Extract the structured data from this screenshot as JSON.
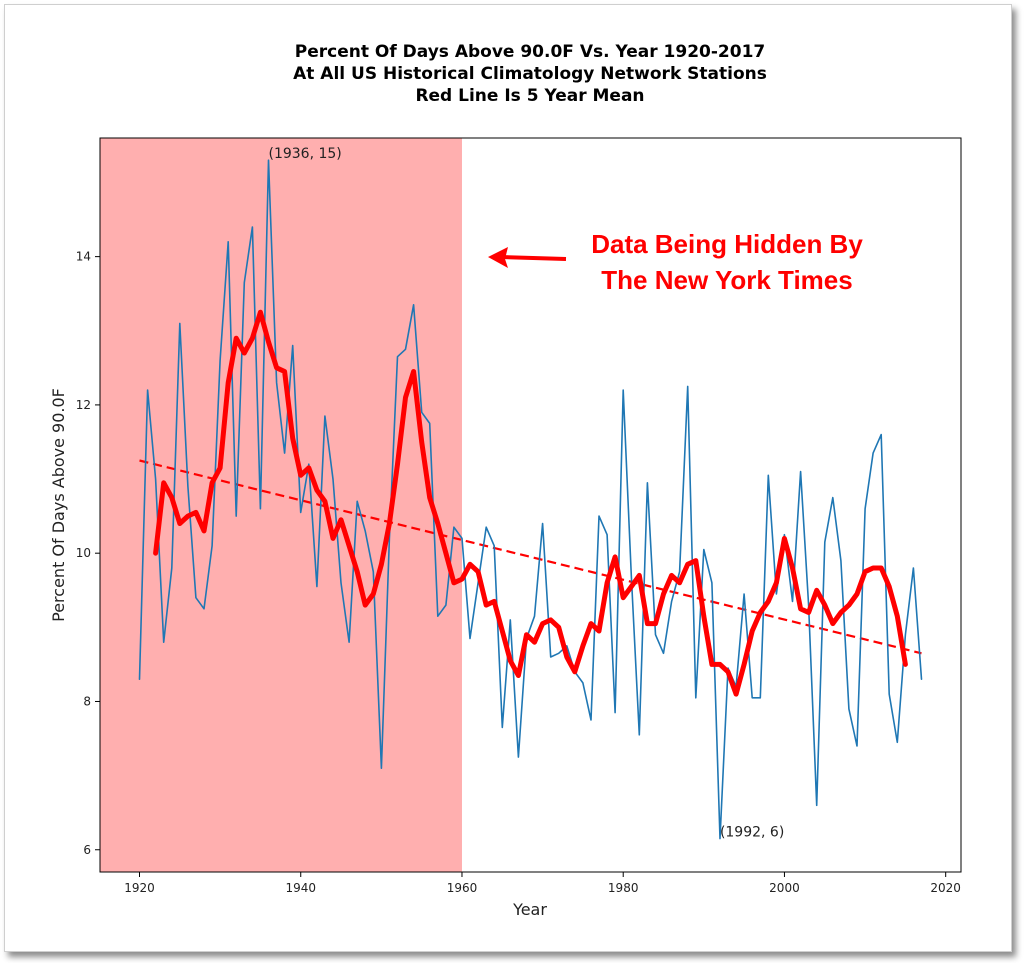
{
  "chart_data": {
    "type": "line",
    "title": [
      "Percent Of Days Above 90.0F Vs. Year 1920-2017",
      "At All US Historical Climatology Network Stations",
      "Red Line Is 5 Year Mean"
    ],
    "xlabel": "Year",
    "ylabel": "Percent Of Days Above 90.0F",
    "xlim": [
      1915.1,
      2021.9
    ],
    "ylim": [
      5.7,
      15.6
    ],
    "xticks": [
      1920,
      1940,
      1960,
      1980,
      2000,
      2020
    ],
    "yticks": [
      6,
      8,
      10,
      12,
      14
    ],
    "shaded_region": {
      "x": [
        1915.1,
        1960
      ],
      "color": "#ffafaf"
    },
    "series": [
      {
        "role": "annual",
        "color": "#1f77b4",
        "x": [
          1920,
          1921,
          1922,
          1923,
          1924,
          1925,
          1926,
          1927,
          1928,
          1929,
          1930,
          1931,
          1932,
          1933,
          1934,
          1935,
          1936,
          1937,
          1938,
          1939,
          1940,
          1941,
          1942,
          1943,
          1944,
          1945,
          1946,
          1947,
          1948,
          1949,
          1950,
          1951,
          1952,
          1953,
          1954,
          1955,
          1956,
          1957,
          1958,
          1959,
          1960,
          1961,
          1962,
          1963,
          1964,
          1965,
          1966,
          1967,
          1968,
          1969,
          1970,
          1971,
          1972,
          1973,
          1974,
          1975,
          1976,
          1977,
          1978,
          1979,
          1980,
          1981,
          1982,
          1983,
          1984,
          1985,
          1986,
          1987,
          1988,
          1989,
          1990,
          1991,
          1992,
          1993,
          1994,
          1995,
          1996,
          1997,
          1998,
          1999,
          2000,
          2001,
          2002,
          2003,
          2004,
          2005,
          2006,
          2007,
          2008,
          2009,
          2010,
          2011,
          2012,
          2013,
          2014,
          2015,
          2016,
          2017
        ],
        "values": [
          8.3,
          12.2,
          11.0,
          8.8,
          9.8,
          13.1,
          10.9,
          9.4,
          9.25,
          10.1,
          12.6,
          14.2,
          10.5,
          13.65,
          14.4,
          10.6,
          15.3,
          12.3,
          11.35,
          12.8,
          10.55,
          11.2,
          9.55,
          11.85,
          11.0,
          9.6,
          8.8,
          10.7,
          10.3,
          9.75,
          7.1,
          10.2,
          12.65,
          12.75,
          13.35,
          11.9,
          11.75,
          9.15,
          9.3,
          10.35,
          10.2,
          8.85,
          9.6,
          10.35,
          10.1,
          7.65,
          9.1,
          7.25,
          8.85,
          9.15,
          10.4,
          8.6,
          8.65,
          8.75,
          8.4,
          8.25,
          7.75,
          10.5,
          10.25,
          7.85,
          12.2,
          9.7,
          7.55,
          10.95,
          8.9,
          8.65,
          9.35,
          9.75,
          12.25,
          8.05,
          10.05,
          9.6,
          6.15,
          8.45,
          8.2,
          9.45,
          8.05,
          8.05,
          11.05,
          9.45,
          10.25,
          9.35,
          11.1,
          9.3,
          6.6,
          10.15,
          10.75,
          9.9,
          7.9,
          7.4,
          10.6,
          11.35,
          11.6,
          8.1,
          7.45,
          8.9,
          9.8,
          8.3
        ]
      },
      {
        "role": "5 year mean",
        "color": "#ff0000",
        "x": [
          1922,
          1923,
          1924,
          1925,
          1926,
          1927,
          1928,
          1929,
          1930,
          1931,
          1932,
          1933,
          1934,
          1935,
          1936,
          1937,
          1938,
          1939,
          1940,
          1941,
          1942,
          1943,
          1944,
          1945,
          1946,
          1947,
          1948,
          1949,
          1950,
          1951,
          1952,
          1953,
          1954,
          1955,
          1956,
          1957,
          1958,
          1959,
          1960,
          1961,
          1962,
          1963,
          1964,
          1965,
          1966,
          1967,
          1968,
          1969,
          1970,
          1971,
          1972,
          1973,
          1974,
          1975,
          1976,
          1977,
          1978,
          1979,
          1980,
          1981,
          1982,
          1983,
          1984,
          1985,
          1986,
          1987,
          1988,
          1989,
          1990,
          1991,
          1992,
          1993,
          1994,
          1995,
          1996,
          1997,
          1998,
          1999,
          2000,
          2001,
          2002,
          2003,
          2004,
          2005,
          2006,
          2007,
          2008,
          2009,
          2010,
          2011,
          2012,
          2013,
          2014,
          2015
        ],
        "values": [
          10.0,
          10.95,
          10.75,
          10.4,
          10.5,
          10.55,
          10.3,
          10.95,
          11.15,
          12.3,
          12.9,
          12.7,
          12.9,
          13.25,
          12.85,
          12.5,
          12.45,
          11.55,
          11.05,
          11.15,
          10.85,
          10.7,
          10.2,
          10.45,
          10.1,
          9.75,
          9.3,
          9.45,
          9.85,
          10.4,
          11.2,
          12.1,
          12.45,
          11.5,
          10.75,
          10.4,
          10.0,
          9.6,
          9.65,
          9.85,
          9.75,
          9.3,
          9.35,
          8.95,
          8.55,
          8.35,
          8.9,
          8.8,
          9.05,
          9.1,
          9.0,
          8.6,
          8.4,
          8.75,
          9.05,
          8.95,
          9.6,
          9.95,
          9.4,
          9.55,
          9.7,
          9.05,
          9.05,
          9.45,
          9.7,
          9.6,
          9.85,
          9.9,
          9.15,
          8.5,
          8.5,
          8.4,
          8.1,
          8.5,
          8.95,
          9.2,
          9.35,
          9.6,
          10.2,
          9.8,
          9.25,
          9.2,
          9.5,
          9.3,
          9.05,
          9.2,
          9.3,
          9.45,
          9.75,
          9.8,
          9.8,
          9.55,
          9.15,
          8.5
        ]
      },
      {
        "role": "trend",
        "color": "#ff0000",
        "style": "dashed",
        "x": [
          1920,
          2017
        ],
        "values": [
          11.25,
          8.65
        ]
      }
    ],
    "annotations": [
      {
        "text": "(1936, 15)",
        "x": 1936,
        "y": 15.3
      },
      {
        "text": "(1992, 6)",
        "x": 1992,
        "y": 6.15
      }
    ],
    "callout": [
      "Data Being Hidden By",
      "The New York Times"
    ],
    "grid": false,
    "legend": "none"
  }
}
